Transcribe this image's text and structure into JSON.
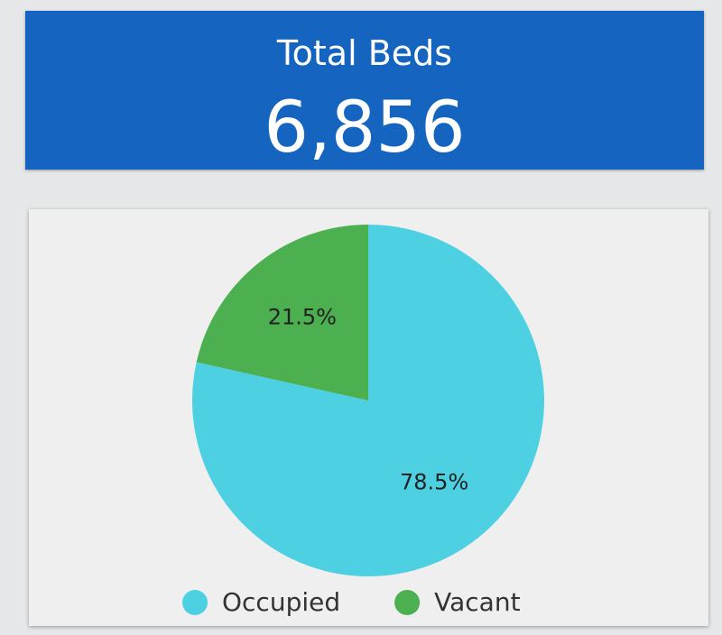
{
  "kpi": {
    "label": "Total Beds",
    "value": "6,856"
  },
  "chart_data": {
    "type": "pie",
    "categories": [
      "Occupied",
      "Vacant"
    ],
    "values": [
      78.5,
      21.5
    ],
    "value_labels": [
      "78.5%",
      "21.5%"
    ],
    "colors": [
      "#4dd0e1",
      "#4caf50"
    ],
    "legend": "bottom"
  }
}
